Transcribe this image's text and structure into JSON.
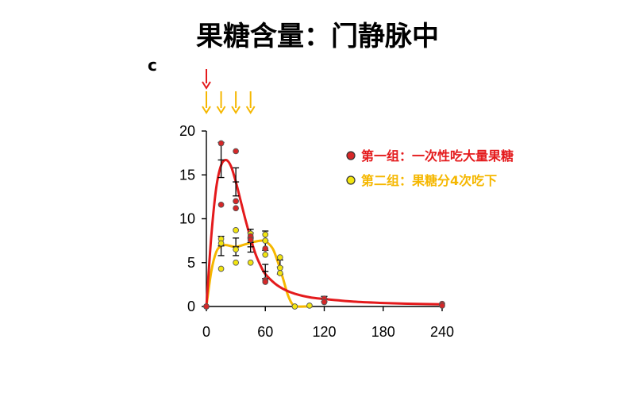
{
  "title": "果糖含量：门静脉中",
  "panel_label": "c",
  "chart_data": {
    "type": "line",
    "title": "果糖含量：门静脉中",
    "xlabel": "",
    "ylabel": "",
    "xlim": [
      0,
      240
    ],
    "ylim": [
      0,
      20
    ],
    "x_ticks": [
      0,
      60,
      120,
      180,
      240
    ],
    "y_ticks": [
      0,
      5,
      10,
      15,
      20
    ],
    "legend_position": "top-right",
    "colors": {
      "red": "#e41a1c",
      "yellow": "#f5b700",
      "marker_yellow": "#f2e50f",
      "marker_red": "#d62728"
    },
    "dosing_arrows": [
      {
        "series": "red",
        "x": [
          0
        ]
      },
      {
        "series": "yellow",
        "x": [
          0,
          15,
          30,
          45
        ]
      }
    ],
    "series": [
      {
        "name": "第一组：一次性吃大量果糖",
        "color": "#e41a1c",
        "curve": [
          [
            0,
            0
          ],
          [
            5,
            8
          ],
          [
            10,
            13.5
          ],
          [
            15,
            16.1
          ],
          [
            20,
            16.7
          ],
          [
            25,
            16.0
          ],
          [
            30,
            14.2
          ],
          [
            35,
            12.0
          ],
          [
            40,
            9.8
          ],
          [
            45,
            7.8
          ],
          [
            50,
            6.0
          ],
          [
            55,
            4.7
          ],
          [
            60,
            3.7
          ],
          [
            70,
            2.6
          ],
          [
            80,
            1.9
          ],
          [
            90,
            1.45
          ],
          [
            105,
            1.05
          ],
          [
            120,
            0.85
          ],
          [
            150,
            0.55
          ],
          [
            180,
            0.4
          ],
          [
            210,
            0.3
          ],
          [
            240,
            0.25
          ]
        ],
        "mean_err": [
          [
            15,
            16.7,
            2.0
          ],
          [
            30,
            14.2,
            1.6
          ],
          [
            45,
            7.8,
            1.0
          ],
          [
            60,
            4.0,
            0.8
          ],
          [
            120,
            0.85,
            0.3
          ]
        ],
        "points": [
          [
            0,
            0
          ],
          [
            15,
            18.6
          ],
          [
            15,
            11.6
          ],
          [
            30,
            17.7
          ],
          [
            30,
            12.0
          ],
          [
            30,
            11.2
          ],
          [
            45,
            8.0
          ],
          [
            45,
            7.6
          ],
          [
            60,
            6.6
          ],
          [
            60,
            3.0
          ],
          [
            60,
            2.8
          ],
          [
            120,
            0.9
          ],
          [
            120,
            0.5
          ],
          [
            240,
            0.3
          ],
          [
            240,
            0.1
          ]
        ]
      },
      {
        "name": "第二组：果糖分4次吃下",
        "color": "#f5b700",
        "curve": [
          [
            0,
            0
          ],
          [
            5,
            4.0
          ],
          [
            10,
            6.2
          ],
          [
            15,
            6.9
          ],
          [
            20,
            7.0
          ],
          [
            30,
            6.8
          ],
          [
            40,
            7.1
          ],
          [
            50,
            7.4
          ],
          [
            58,
            7.5
          ],
          [
            63,
            7.2
          ],
          [
            68,
            6.5
          ],
          [
            73,
            5.0
          ],
          [
            78,
            3.2
          ],
          [
            83,
            1.3
          ],
          [
            88,
            0.2
          ],
          [
            93,
            0
          ],
          [
            100,
            0
          ],
          [
            108,
            0
          ]
        ],
        "mean_err": [
          [
            15,
            6.9,
            1.1
          ],
          [
            30,
            6.8,
            1.0
          ],
          [
            45,
            7.3,
            1.1
          ],
          [
            60,
            7.5,
            1.1
          ],
          [
            75,
            4.5,
            0.8
          ]
        ],
        "points": [
          [
            0,
            0
          ],
          [
            15,
            7.7
          ],
          [
            15,
            7.2
          ],
          [
            15,
            4.3
          ],
          [
            30,
            8.7
          ],
          [
            30,
            6.5
          ],
          [
            30,
            5.0
          ],
          [
            45,
            8.3
          ],
          [
            45,
            7.8
          ],
          [
            45,
            5.0
          ],
          [
            60,
            8.2
          ],
          [
            60,
            7.5
          ],
          [
            60,
            5.9
          ],
          [
            75,
            5.6
          ],
          [
            75,
            4.4
          ],
          [
            75,
            3.8
          ],
          [
            90,
            0
          ],
          [
            105,
            0.1
          ]
        ]
      }
    ]
  }
}
